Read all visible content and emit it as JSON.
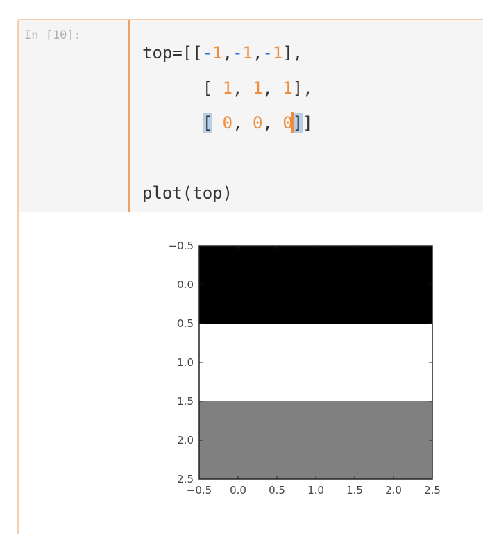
{
  "cell": {
    "prompt": "In [10]:",
    "code_lines": [
      [
        "top=[[",
        "-",
        "1",
        ",",
        "-",
        "1",
        ",",
        "-",
        "1",
        "],"
      ],
      [
        "      [ ",
        "1",
        ", ",
        "1",
        ", ",
        "1",
        "],"
      ],
      [
        "      ",
        "[",
        " ",
        "0",
        ", ",
        "0",
        ", ",
        "0",
        "]",
        "]"
      ],
      [
        ""
      ],
      [
        "plot(top)"
      ]
    ]
  },
  "chart_data": {
    "type": "heatmap",
    "colormap": "gray",
    "values": [
      [
        -1,
        -1,
        -1
      ],
      [
        1,
        1,
        1
      ],
      [
        0,
        0,
        0
      ]
    ],
    "colors": [
      "#000000",
      "#ffffff",
      "#808080"
    ],
    "xlim": [
      -0.5,
      2.5
    ],
    "ylim": [
      2.5,
      -0.5
    ],
    "xticks": [
      "−0.5",
      "0.0",
      "0.5",
      "1.0",
      "1.5",
      "2.0",
      "2.5"
    ],
    "yticks": [
      "−0.5",
      "0.0",
      "0.5",
      "1.0",
      "1.5",
      "2.0",
      "2.5"
    ],
    "xtick_values": [
      -0.5,
      0,
      0.5,
      1,
      1.5,
      2,
      2.5
    ],
    "ytick_values": [
      -0.5,
      0,
      0.5,
      1,
      1.5,
      2,
      2.5
    ]
  }
}
